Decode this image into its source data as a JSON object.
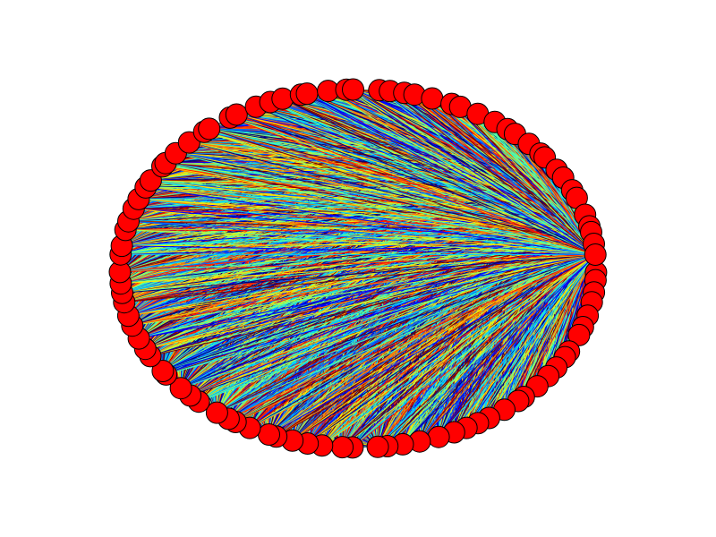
{
  "graph": {
    "layout": "circular",
    "node_count": 96,
    "edge_mode": "complete-graph",
    "node_fill": "#ff0000",
    "node_stroke": "#000000",
    "edge_colormap": "jet",
    "edge_palette": [
      "#00007f",
      "#0000ff",
      "#0063ff",
      "#00d4ff",
      "#4dffaa",
      "#aaff4d",
      "#ffe500",
      "#ff7f00",
      "#ff1a00",
      "#7f0000"
    ],
    "background": "#ffffff"
  }
}
